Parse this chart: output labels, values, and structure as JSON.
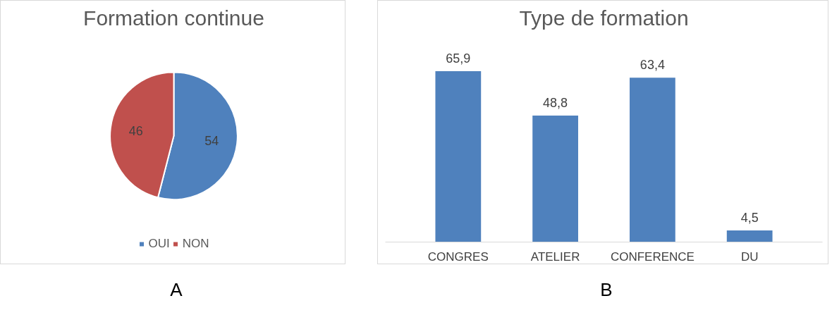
{
  "chart_data": [
    {
      "type": "pie",
      "title": "Formation continue",
      "categories": [
        "OUI",
        "NON"
      ],
      "values": [
        54,
        46
      ],
      "colors": [
        "#4f81bd",
        "#c0504d"
      ],
      "data_labels": true,
      "legend": "bottom",
      "annotations": [
        "A"
      ]
    },
    {
      "type": "bar",
      "title": "Type de formation",
      "categories": [
        "CONGRES",
        "ATELIER",
        "CONFERENCE",
        "DU"
      ],
      "values": [
        65.9,
        48.8,
        63.4,
        4.5
      ],
      "color": "#4f81bd",
      "data_labels": true,
      "value_labels": [
        "65,9",
        "48,8",
        "63,4",
        "4,5"
      ],
      "grid": false,
      "annotations": [
        "B"
      ]
    }
  ]
}
